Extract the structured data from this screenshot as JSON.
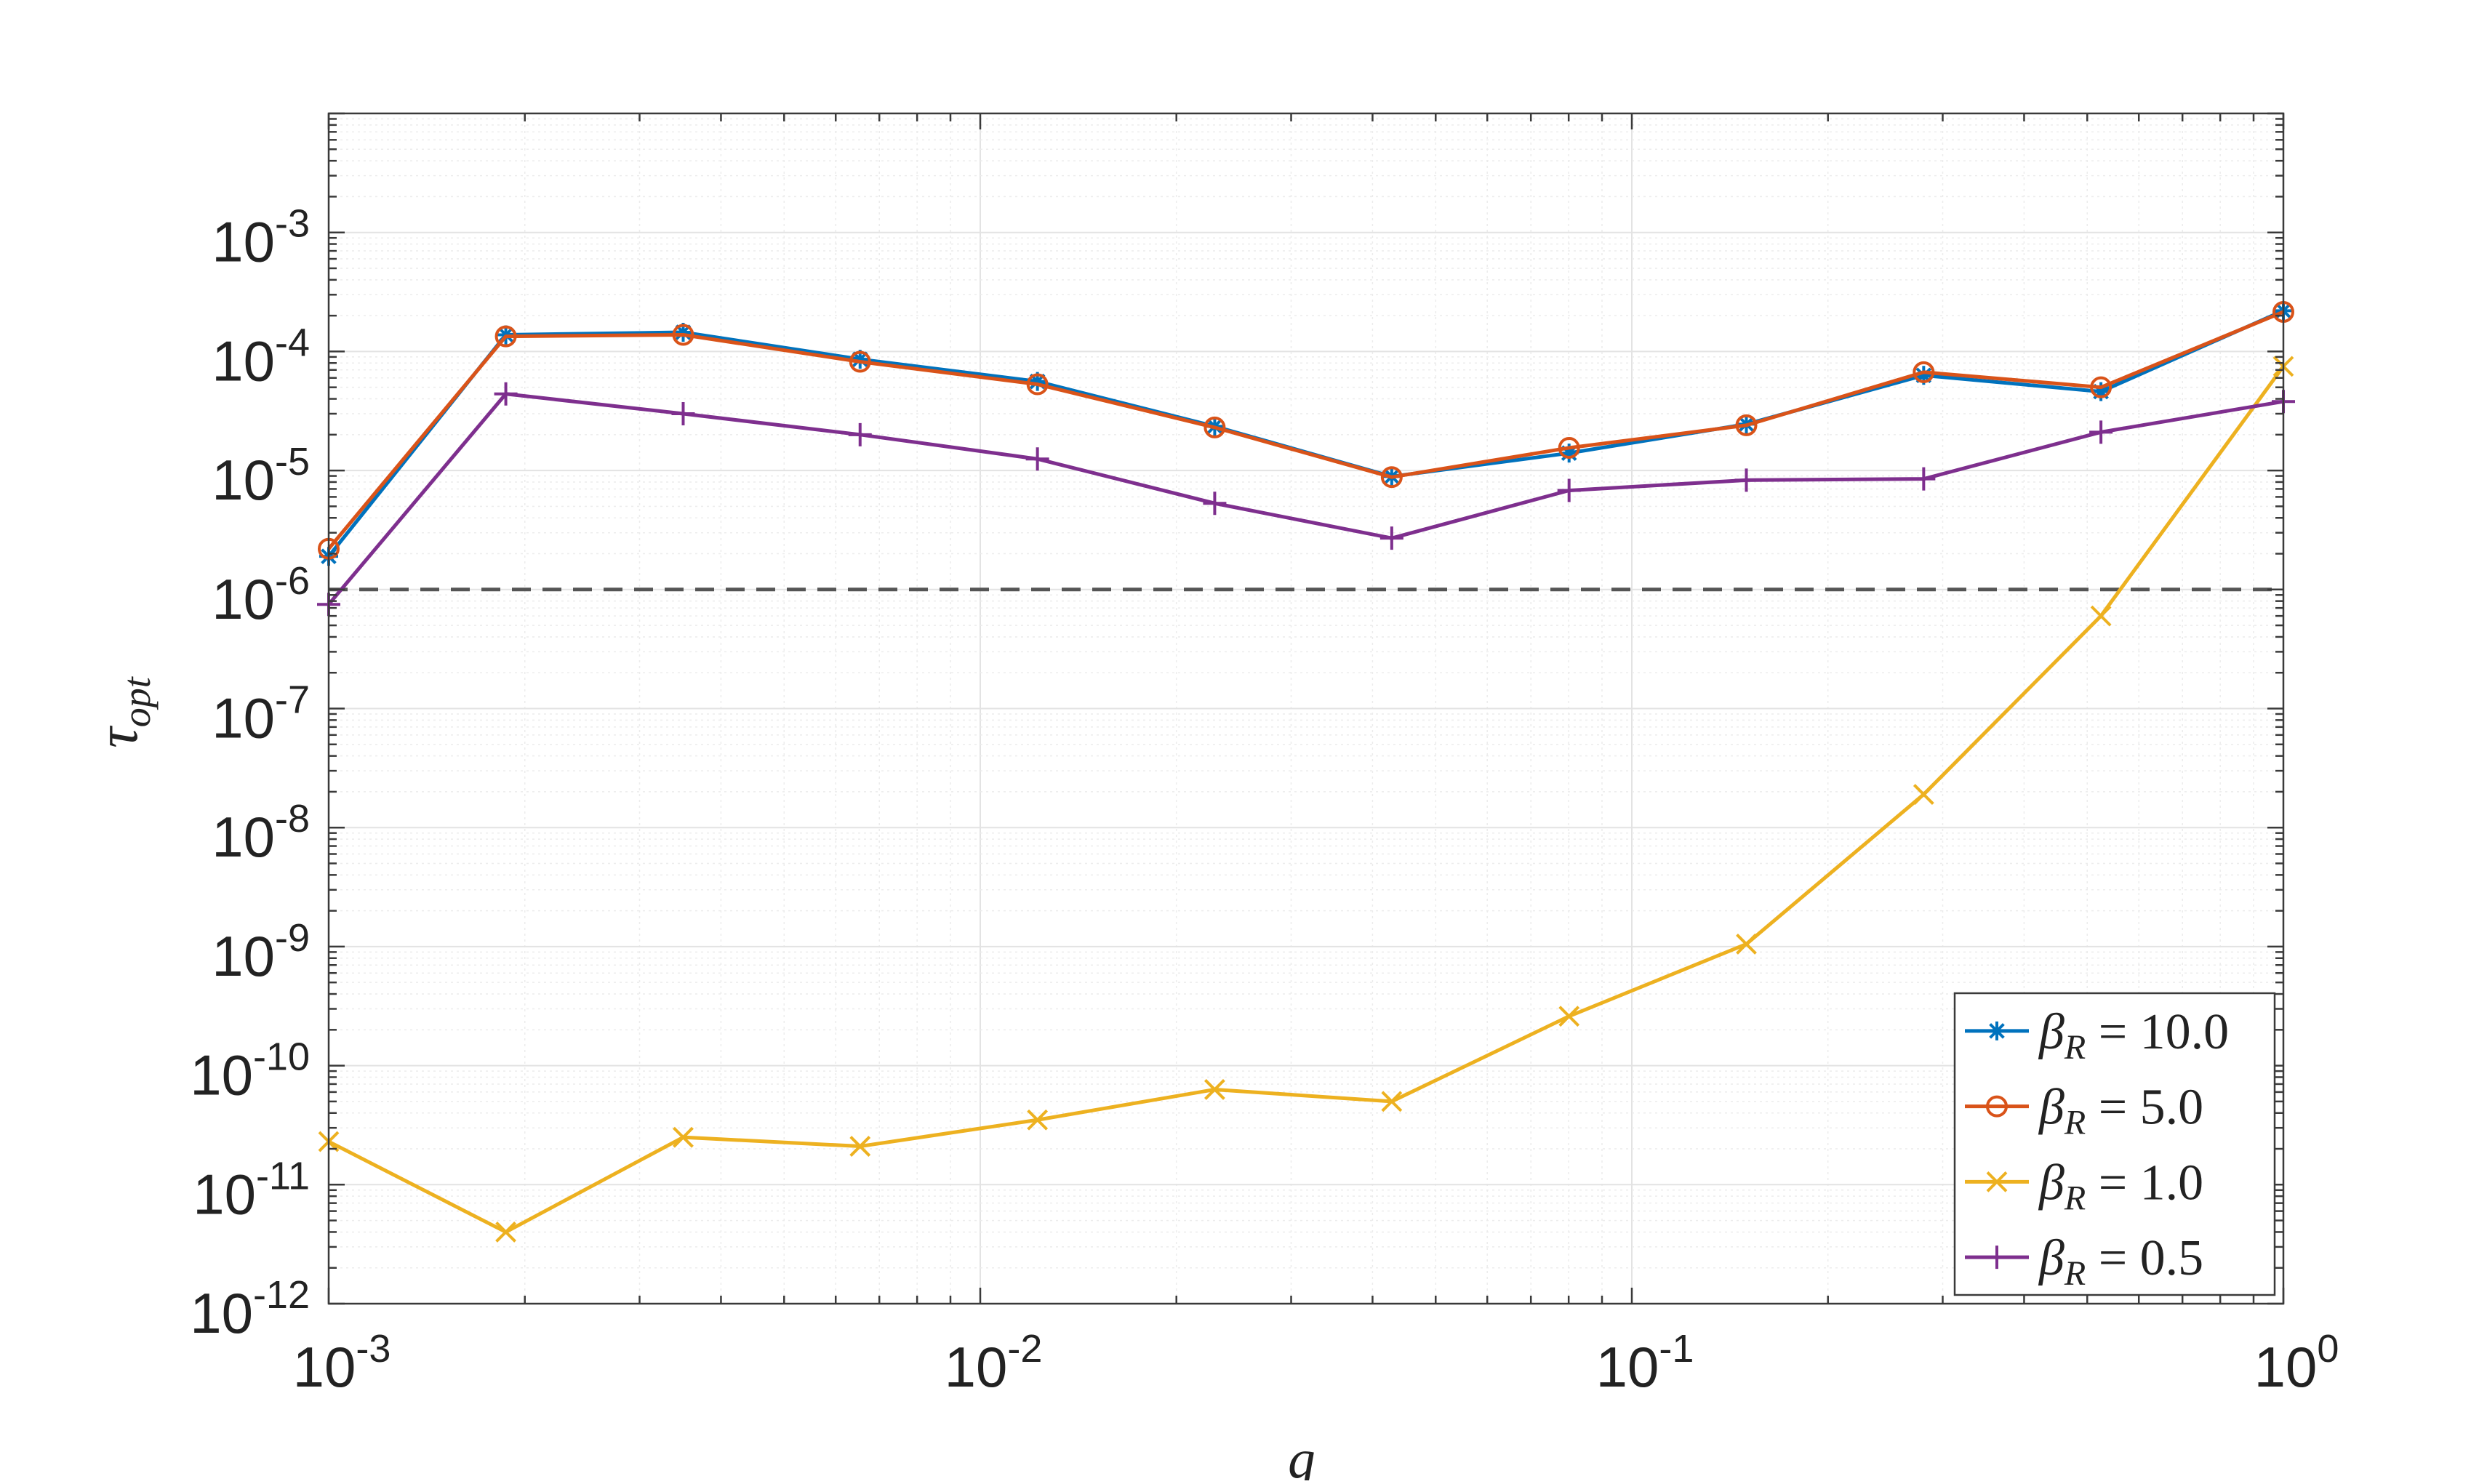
{
  "chart_data": {
    "type": "line",
    "title": "",
    "xlabel": "g",
    "ylabel": "τ_opt",
    "ylabel_main": "τ",
    "ylabel_sub": "opt",
    "x_scale": "log",
    "y_scale": "log",
    "xlim": [
      0.001,
      1
    ],
    "ylim": [
      1e-12,
      0.01
    ],
    "grid": true,
    "legend_position": "bottom-right",
    "x_ticks": [
      {
        "value": 0.001,
        "base": "10",
        "exp": "-3"
      },
      {
        "value": 0.01,
        "base": "10",
        "exp": "-2"
      },
      {
        "value": 0.1,
        "base": "10",
        "exp": "-1"
      },
      {
        "value": 1,
        "base": "10",
        "exp": "0"
      }
    ],
    "y_ticks": [
      {
        "value": 1e-12,
        "base": "10",
        "exp": "-12"
      },
      {
        "value": 1e-11,
        "base": "10",
        "exp": "-11"
      },
      {
        "value": 1e-10,
        "base": "10",
        "exp": "-10"
      },
      {
        "value": 1e-09,
        "base": "10",
        "exp": "-9"
      },
      {
        "value": 1e-08,
        "base": "10",
        "exp": "-8"
      },
      {
        "value": 1e-07,
        "base": "10",
        "exp": "-7"
      },
      {
        "value": 1e-06,
        "base": "10",
        "exp": "-6"
      },
      {
        "value": 1e-05,
        "base": "10",
        "exp": "-5"
      },
      {
        "value": 0.0001,
        "base": "10",
        "exp": "-4"
      },
      {
        "value": 0.001,
        "base": "10",
        "exp": "-3"
      }
    ],
    "x": [
      0.001,
      0.00187,
      0.0035,
      0.00654,
      0.01224,
      0.0229,
      0.04281,
      0.08011,
      0.1499,
      0.2805,
      0.5248,
      1.0
    ],
    "reference_line": {
      "y": 1e-06,
      "style": "dashed",
      "color": "#555555"
    },
    "series": [
      {
        "name": "β_R = 10.0",
        "label_symbol": "β",
        "label_sub": "R",
        "label_rest": " = 10.0",
        "marker": "asterisk",
        "color": "#0072bd",
        "values": [
          1.9e-06,
          0.000138,
          0.000145,
          8.6e-05,
          5.6e-05,
          2.35e-05,
          8.9e-06,
          1.4e-05,
          2.45e-05,
          6.3e-05,
          4.6e-05,
          0.00022
        ]
      },
      {
        "name": "β_R = 5.0",
        "label_symbol": "β",
        "label_sub": "R",
        "label_rest": " = 5.0",
        "marker": "circle",
        "color": "#d95319",
        "values": [
          2.2e-06,
          0.000134,
          0.000138,
          8.2e-05,
          5.3e-05,
          2.3e-05,
          8.8e-06,
          1.55e-05,
          2.4e-05,
          6.7e-05,
          5e-05,
          0.000215
        ]
      },
      {
        "name": "β_R = 1.0",
        "label_symbol": "β",
        "label_sub": "R",
        "label_rest": " = 1.0",
        "marker": "x",
        "color": "#edb120",
        "values": [
          2.3e-11,
          4e-12,
          2.5e-11,
          2.1e-11,
          3.5e-11,
          6.3e-11,
          5e-11,
          2.6e-10,
          1.05e-09,
          1.9e-08,
          6e-07,
          7.5e-05
        ]
      },
      {
        "name": "β_R = 0.5",
        "label_symbol": "β",
        "label_sub": "R",
        "label_rest": " = 0.5",
        "marker": "plus",
        "color": "#7e2f8e",
        "values": [
          7.5e-07,
          4.4e-05,
          3e-05,
          2e-05,
          1.25e-05,
          5.3e-06,
          2.7e-06,
          6.8e-06,
          8.3e-06,
          8.5e-06,
          2.1e-05,
          3.8e-05
        ]
      }
    ]
  }
}
